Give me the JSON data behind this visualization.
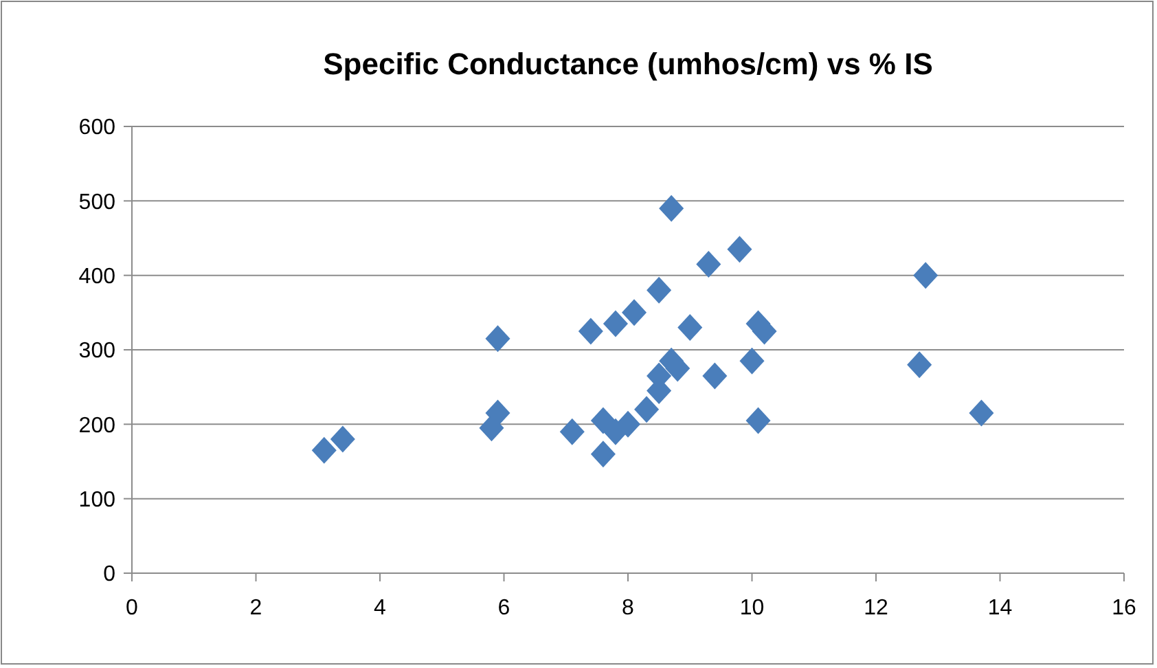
{
  "chart_data": {
    "type": "scatter",
    "title": "Specific Conductance (umhos/cm) vs % IS",
    "marker": "diamond",
    "grid": "y",
    "xlim": [
      0,
      16
    ],
    "xticks": [
      0,
      2,
      4,
      6,
      8,
      10,
      12,
      14,
      16
    ],
    "ylim": [
      0,
      600
    ],
    "yticks": [
      0,
      100,
      200,
      300,
      400,
      500,
      600
    ],
    "series": [
      {
        "color": "#4a7ebb",
        "x": [
          3.1,
          3.4,
          5.8,
          5.9,
          5.9,
          7.1,
          7.6,
          7.6,
          7.8,
          8.0,
          8.3,
          8.5,
          8.5,
          8.7,
          8.8,
          7.4,
          7.8,
          8.1,
          8.5,
          8.7,
          9.0,
          9.3,
          9.8,
          9.4,
          10.0,
          10.1,
          10.2,
          10.1,
          12.8,
          12.7,
          13.7
        ],
        "values": [
          165,
          180,
          195,
          215,
          315,
          190,
          160,
          205,
          190,
          200,
          220,
          245,
          265,
          285,
          275,
          325,
          335,
          350,
          380,
          490,
          330,
          415,
          435,
          265,
          285,
          335,
          325,
          205,
          400,
          280,
          215
        ]
      }
    ]
  }
}
